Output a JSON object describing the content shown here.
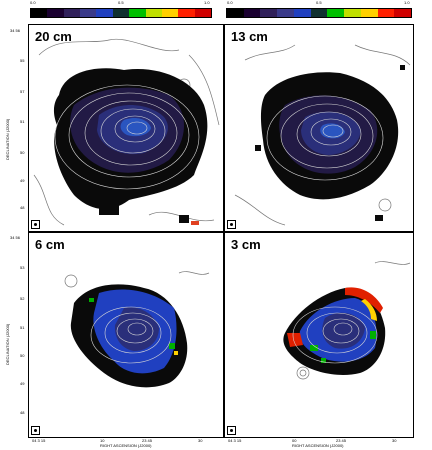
{
  "colorbar": {
    "left_ticks": [
      "0.0",
      "0.5",
      "1.0"
    ],
    "right_ticks": [
      "0.0",
      "0.5",
      "1.0"
    ],
    "colors": [
      "#000000",
      "#1a0030",
      "#30205a",
      "#3a3a8a",
      "#2040c0",
      "#103030",
      "#00c000",
      "#c0e000",
      "#ffd000",
      "#ff2000",
      "#d00000"
    ]
  },
  "panels": [
    {
      "label": "20 cm"
    },
    {
      "label": "13 cm"
    },
    {
      "label": "6 cm"
    },
    {
      "label": "3 cm"
    }
  ],
  "yaxis": {
    "label": "DECLINATION (J2000)",
    "top_ticks": [
      "34 56",
      "55",
      "57",
      "51",
      "50",
      "49",
      "48"
    ],
    "bottom_ticks": [
      "34 56",
      "53",
      "52",
      "51",
      "50",
      "49",
      "48"
    ]
  },
  "xaxis": {
    "label": "RIGHT ASCENSION (J2000)",
    "left_ticks": [
      "04 3 15",
      "10",
      "23 45",
      "30"
    ],
    "right_ticks": [
      "04 3 15",
      "00",
      "23 45",
      "30"
    ]
  }
}
